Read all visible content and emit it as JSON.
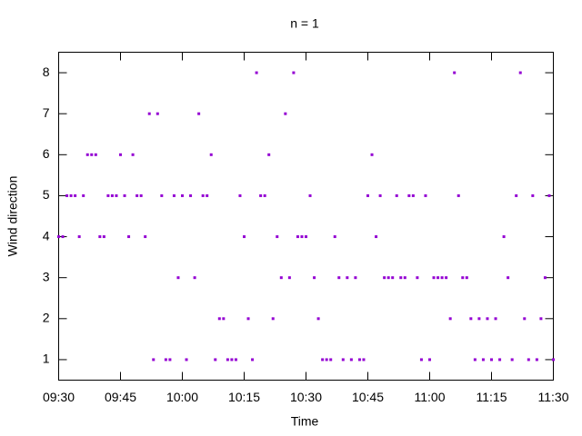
{
  "chart_data": {
    "type": "scatter",
    "title": "n = 1",
    "x_label": "Time",
    "y_label": "Wind direction",
    "x": [
      "09:30",
      "09:31",
      "09:32",
      "09:33",
      "09:34",
      "09:35",
      "09:36",
      "09:37",
      "09:38",
      "09:39",
      "09:40",
      "09:41",
      "09:42",
      "09:43",
      "09:44",
      "09:45",
      "09:46",
      "09:47",
      "09:48",
      "09:49",
      "09:50",
      "09:51",
      "09:52",
      "09:53",
      "09:54",
      "09:55",
      "09:56",
      "09:57",
      "09:58",
      "09:59",
      "10:00",
      "10:01",
      "10:02",
      "10:03",
      "10:04",
      "10:05",
      "10:06",
      "10:07",
      "10:08",
      "10:09",
      "10:10",
      "10:11",
      "10:12",
      "10:13",
      "10:14",
      "10:15",
      "10:16",
      "10:17",
      "10:18",
      "10:19",
      "10:20",
      "10:21",
      "10:22",
      "10:23",
      "10:24",
      "10:25",
      "10:26",
      "10:27",
      "10:28",
      "10:29",
      "10:30",
      "10:31",
      "10:32",
      "10:33",
      "10:34",
      "10:35",
      "10:36",
      "10:37",
      "10:38",
      "10:39",
      "10:40",
      "10:41",
      "10:42",
      "10:43",
      "10:44",
      "10:45",
      "10:46",
      "10:47",
      "10:48",
      "10:49",
      "10:50",
      "10:51",
      "10:52",
      "10:53",
      "10:54",
      "10:55",
      "10:56",
      "10:57",
      "10:58",
      "10:59",
      "11:00",
      "11:01",
      "11:02",
      "11:03",
      "11:04",
      "11:05",
      "11:06",
      "11:07",
      "11:08",
      "11:09",
      "11:10",
      "11:11",
      "11:12",
      "11:13",
      "11:14",
      "11:15",
      "11:16",
      "11:17",
      "11:18",
      "11:19",
      "11:20",
      "11:21",
      "11:22",
      "11:23",
      "11:24",
      "11:25",
      "11:26",
      "11:27",
      "11:28",
      "11:29",
      "11:30"
    ],
    "values": [
      4,
      4,
      5,
      5,
      5,
      4,
      5,
      6,
      6,
      6,
      4,
      4,
      5,
      5,
      5,
      6,
      5,
      4,
      6,
      5,
      5,
      4,
      7,
      1,
      7,
      5,
      1,
      1,
      5,
      3,
      5,
      1,
      5,
      3,
      7,
      5,
      5,
      6,
      1,
      2,
      2,
      1,
      1,
      1,
      5,
      4,
      2,
      1,
      8,
      5,
      5,
      6,
      2,
      4,
      3,
      7,
      3,
      8,
      4,
      4,
      4,
      5,
      3,
      2,
      1,
      1,
      1,
      4,
      3,
      1,
      3,
      1,
      3,
      1,
      1,
      5,
      6,
      4,
      5,
      3,
      3,
      3,
      5,
      3,
      3,
      5,
      5,
      3,
      1,
      5,
      1,
      3,
      3,
      3,
      3,
      2,
      8,
      5,
      3,
      3,
      2,
      1,
      2,
      1,
      2,
      1,
      2,
      1,
      4,
      3,
      1,
      5,
      8,
      2,
      1,
      5,
      1,
      2,
      3,
      5,
      1
    ],
    "color": "#9400d3",
    "xlim": [
      "09:30",
      "11:30"
    ],
    "xticks": [
      "09:30",
      "09:45",
      "10:00",
      "10:15",
      "10:30",
      "10:45",
      "11:00",
      "11:15",
      "11:30"
    ],
    "ylim": [
      0.5,
      8.5
    ],
    "yticks": [
      1,
      2,
      3,
      4,
      5,
      6,
      7,
      8
    ]
  }
}
